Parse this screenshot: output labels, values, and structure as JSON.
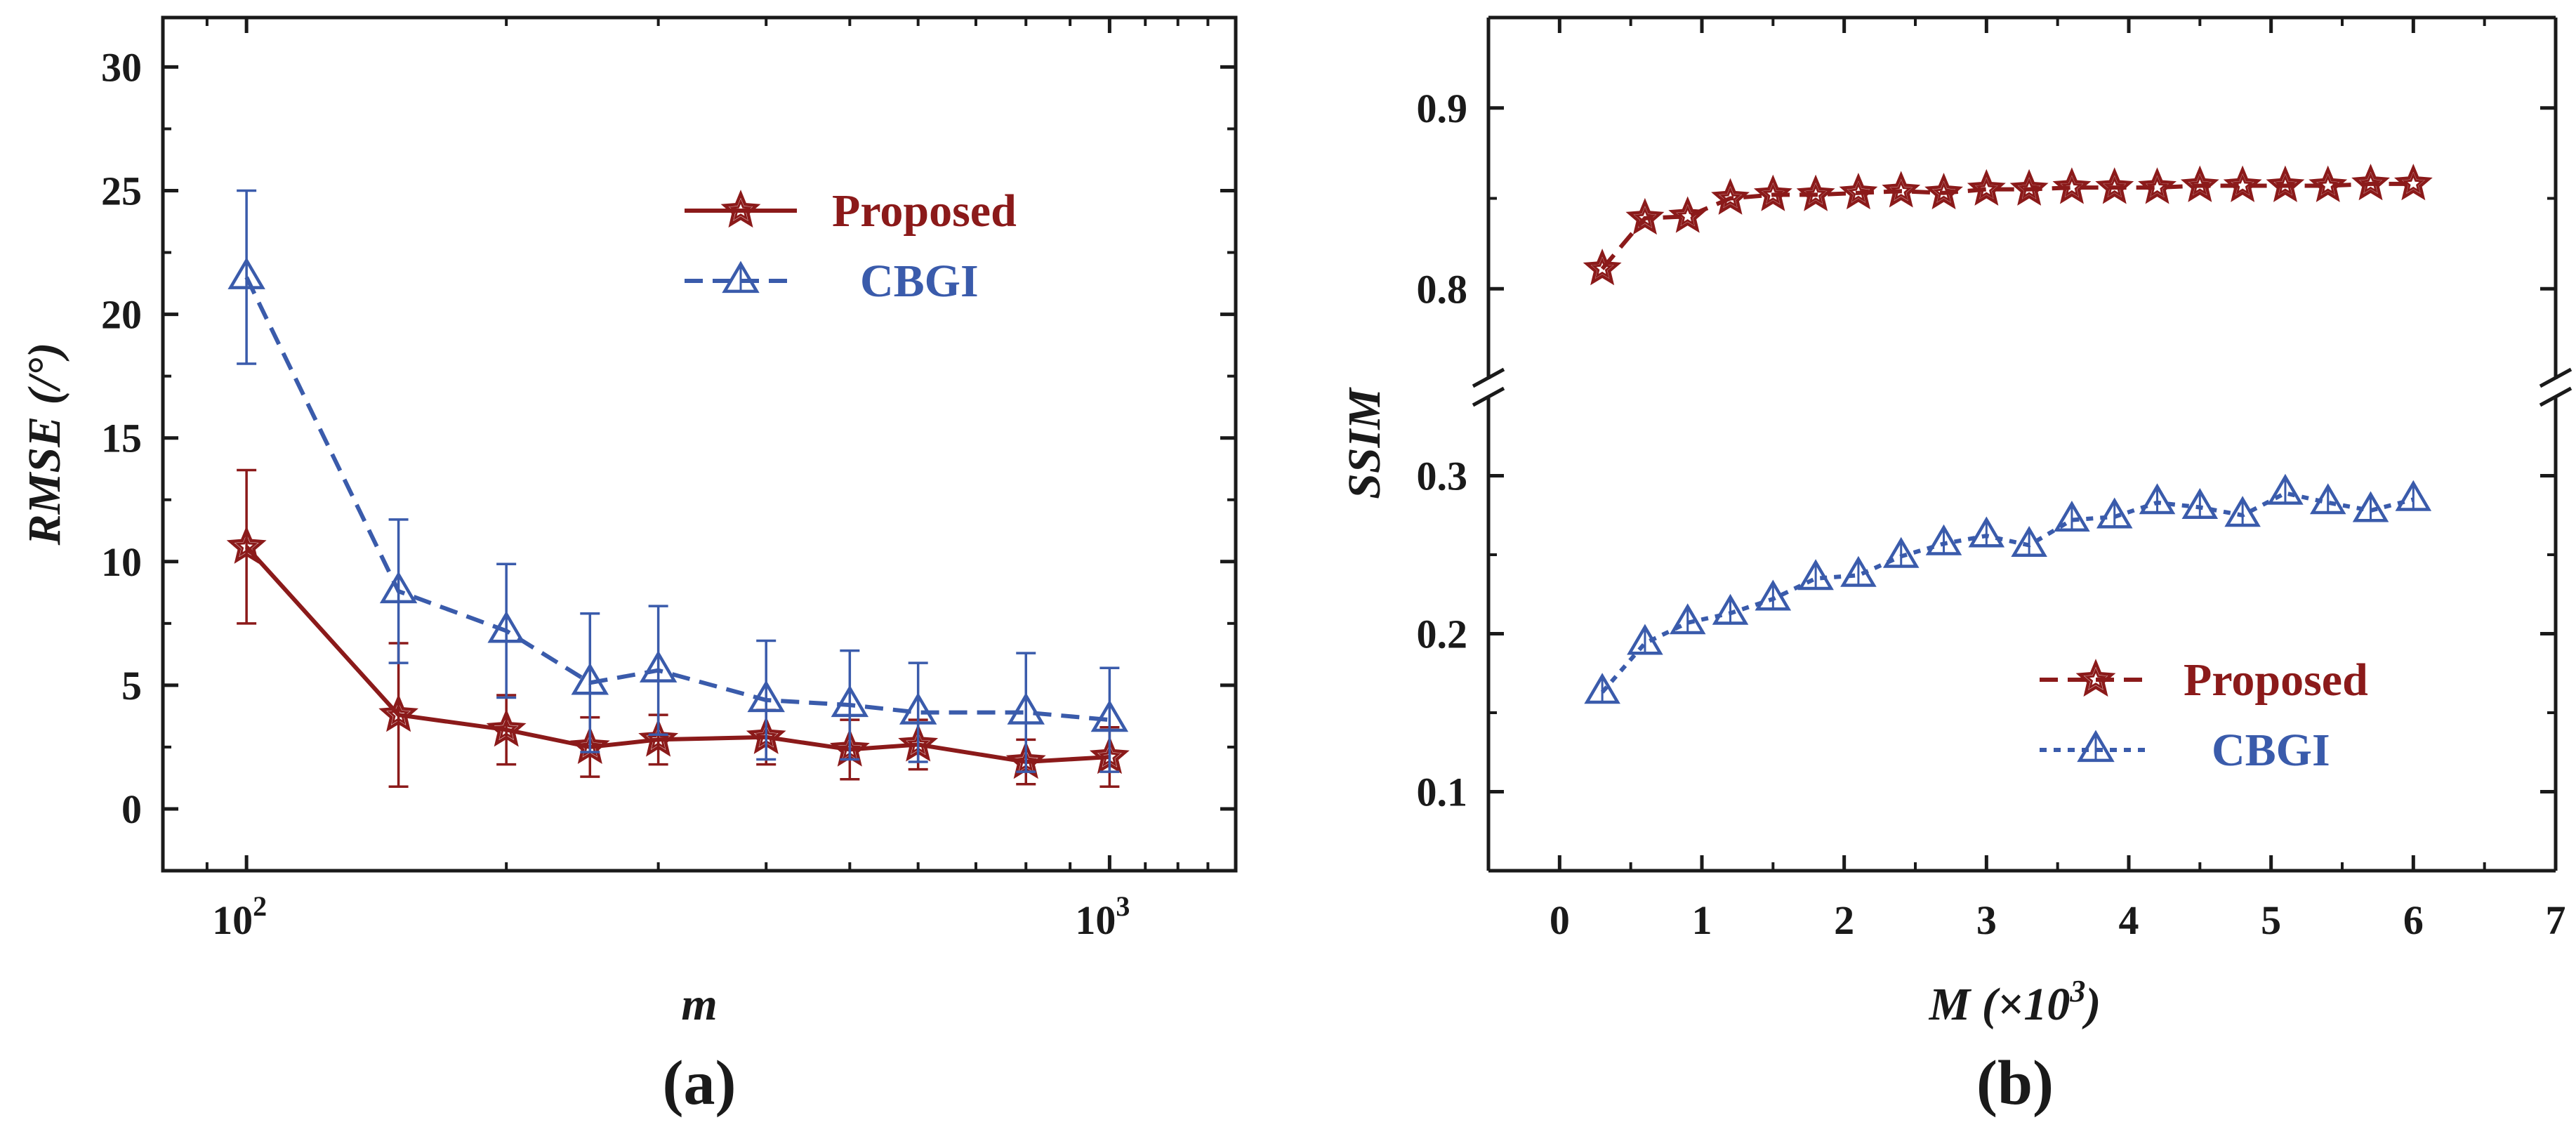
{
  "colors": {
    "proposed": "#8b1a1a",
    "cbgi": "#3a5bab",
    "axis": "#1a1a1a"
  },
  "chart_data": [
    {
      "type": "line",
      "panel_label": "(a)",
      "xlabel": "m",
      "ylabel": "RMSE (/°)",
      "x_scale": "log",
      "xlim": [
        80,
        1400
      ],
      "ylim": [
        -2.5,
        32
      ],
      "x_ticks": [
        {
          "value": 100,
          "base": "10",
          "exp": "2"
        },
        {
          "value": 1000,
          "base": "10",
          "exp": "3"
        }
      ],
      "y_ticks": [
        "0",
        "5",
        "10",
        "15",
        "20",
        "25",
        "30"
      ],
      "legend_position": "top-right",
      "x": [
        100,
        150,
        200,
        250,
        300,
        400,
        500,
        600,
        800,
        1000
      ],
      "series": [
        {
          "name": "Proposed",
          "marker": "star",
          "line": "solid",
          "values": [
            10.6,
            3.8,
            3.2,
            2.5,
            2.8,
            2.9,
            2.4,
            2.6,
            1.9,
            2.1
          ],
          "error": [
            3.1,
            2.9,
            1.4,
            1.2,
            1.0,
            1.1,
            1.2,
            1.0,
            0.9,
            1.2
          ]
        },
        {
          "name": "CBGI",
          "marker": "triangle",
          "line": "dashed",
          "values": [
            21.5,
            8.8,
            7.2,
            5.1,
            5.6,
            4.4,
            4.2,
            3.9,
            3.9,
            3.6
          ],
          "error": [
            3.5,
            2.9,
            2.7,
            2.8,
            2.6,
            2.4,
            2.2,
            2.0,
            2.4,
            2.1
          ]
        }
      ]
    },
    {
      "type": "line",
      "panel_label": "(b)",
      "xlabel": "M (×10³)",
      "ylabel": "SSIM",
      "xlim": [
        -0.5,
        7
      ],
      "y_axis_break": [
        0.35,
        0.75
      ],
      "ylim_lower": [
        0.05,
        0.35
      ],
      "ylim_upper": [
        0.75,
        0.95
      ],
      "x_ticks": [
        "0",
        "1",
        "2",
        "3",
        "4",
        "5",
        "6",
        "7"
      ],
      "y_ticks_lower": [
        "0.1",
        "0.2",
        "0.3"
      ],
      "y_ticks_upper": [
        "0.8",
        "0.9"
      ],
      "legend_position": "bottom-right",
      "x": [
        0.3,
        0.6,
        0.9,
        1.2,
        1.5,
        1.8,
        2.1,
        2.4,
        2.7,
        3.0,
        3.3,
        3.6,
        3.9,
        4.2,
        4.5,
        4.8,
        5.1,
        5.4,
        5.7,
        6.0
      ],
      "series": [
        {
          "name": "Proposed",
          "marker": "star",
          "line": "dashed",
          "values": [
            0.811,
            0.839,
            0.84,
            0.85,
            0.852,
            0.852,
            0.853,
            0.854,
            0.853,
            0.855,
            0.855,
            0.856,
            0.856,
            0.856,
            0.857,
            0.857,
            0.857,
            0.857,
            0.858,
            0.858
          ]
        },
        {
          "name": "CBGI",
          "marker": "triangle",
          "line": "dotted",
          "values": [
            0.163,
            0.194,
            0.207,
            0.213,
            0.222,
            0.235,
            0.237,
            0.249,
            0.257,
            0.262,
            0.256,
            0.272,
            0.274,
            0.283,
            0.28,
            0.275,
            0.289,
            0.283,
            0.278,
            0.285
          ]
        }
      ]
    }
  ]
}
